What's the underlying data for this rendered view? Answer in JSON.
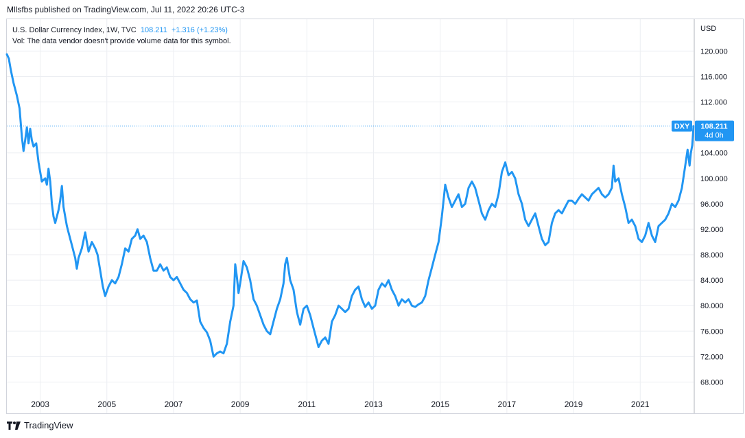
{
  "header": {
    "publish_text": "Mllsfbs published on TradingView.com, Jul 11, 2022 20:26 UTC-3"
  },
  "legend": {
    "symbol_text": "U.S. Dollar Currency Index, 1W, TVC",
    "last_value": "108.211",
    "change": "+1.316 (+1.23%)",
    "volume_note": "Vol: The data vendor doesn't provide volume data for this symbol."
  },
  "price_axis": {
    "currency": "USD",
    "tag_symbol": "DXY",
    "tag_price": "108.211",
    "tag_countdown": "4d 0h"
  },
  "footer": {
    "brand": "TradingView"
  },
  "colors": {
    "line": "#2196f3",
    "grid": "#eceef2",
    "axis_text": "#131722",
    "tag": "#2196f3"
  },
  "chart_data": {
    "type": "line",
    "series": [
      {
        "points": [
          [
            2002.0,
            119.5
          ],
          [
            2002.06,
            118.8
          ],
          [
            2002.12,
            117.0
          ],
          [
            2002.2,
            115.0
          ],
          [
            2002.3,
            113.0
          ],
          [
            2002.38,
            111.0
          ],
          [
            2002.45,
            106.5
          ],
          [
            2002.5,
            104.3
          ],
          [
            2002.55,
            106.0
          ],
          [
            2002.6,
            108.0
          ],
          [
            2002.65,
            105.5
          ],
          [
            2002.7,
            107.8
          ],
          [
            2002.75,
            106.0
          ],
          [
            2002.8,
            105.0
          ],
          [
            2002.88,
            105.5
          ],
          [
            2002.95,
            102.5
          ],
          [
            2003.05,
            99.5
          ],
          [
            2003.15,
            100.0
          ],
          [
            2003.2,
            99.0
          ],
          [
            2003.25,
            101.5
          ],
          [
            2003.3,
            99.5
          ],
          [
            2003.35,
            96.0
          ],
          [
            2003.4,
            94.0
          ],
          [
            2003.45,
            93.0
          ],
          [
            2003.55,
            95.0
          ],
          [
            2003.6,
            96.5
          ],
          [
            2003.65,
            98.8
          ],
          [
            2003.7,
            95.5
          ],
          [
            2003.75,
            94.0
          ],
          [
            2003.8,
            92.5
          ],
          [
            2003.85,
            91.5
          ],
          [
            2003.95,
            89.5
          ],
          [
            2004.05,
            87.5
          ],
          [
            2004.1,
            85.8
          ],
          [
            2004.15,
            87.5
          ],
          [
            2004.25,
            89.0
          ],
          [
            2004.35,
            91.5
          ],
          [
            2004.4,
            90.0
          ],
          [
            2004.45,
            88.5
          ],
          [
            2004.55,
            90.0
          ],
          [
            2004.65,
            89.0
          ],
          [
            2004.72,
            88.0
          ],
          [
            2004.8,
            85.5
          ],
          [
            2004.88,
            83.0
          ],
          [
            2004.95,
            81.5
          ],
          [
            2005.05,
            83.0
          ],
          [
            2005.15,
            84.0
          ],
          [
            2005.25,
            83.5
          ],
          [
            2005.35,
            84.5
          ],
          [
            2005.45,
            86.5
          ],
          [
            2005.55,
            89.0
          ],
          [
            2005.65,
            88.5
          ],
          [
            2005.75,
            90.5
          ],
          [
            2005.85,
            91.0
          ],
          [
            2005.92,
            92.0
          ],
          [
            2006.0,
            90.5
          ],
          [
            2006.1,
            91.0
          ],
          [
            2006.2,
            90.0
          ],
          [
            2006.3,
            87.5
          ],
          [
            2006.4,
            85.5
          ],
          [
            2006.5,
            85.5
          ],
          [
            2006.6,
            86.5
          ],
          [
            2006.7,
            85.5
          ],
          [
            2006.8,
            86.0
          ],
          [
            2006.9,
            84.5
          ],
          [
            2007.0,
            84.0
          ],
          [
            2007.1,
            84.5
          ],
          [
            2007.2,
            83.5
          ],
          [
            2007.3,
            82.5
          ],
          [
            2007.4,
            82.0
          ],
          [
            2007.5,
            81.0
          ],
          [
            2007.6,
            80.5
          ],
          [
            2007.7,
            80.8
          ],
          [
            2007.8,
            77.5
          ],
          [
            2007.9,
            76.5
          ],
          [
            2008.0,
            75.8
          ],
          [
            2008.1,
            74.5
          ],
          [
            2008.2,
            72.0
          ],
          [
            2008.3,
            72.5
          ],
          [
            2008.4,
            72.8
          ],
          [
            2008.5,
            72.5
          ],
          [
            2008.6,
            74.0
          ],
          [
            2008.7,
            77.5
          ],
          [
            2008.8,
            80.0
          ],
          [
            2008.85,
            86.5
          ],
          [
            2008.9,
            84.5
          ],
          [
            2008.95,
            82.0
          ],
          [
            2009.0,
            83.5
          ],
          [
            2009.1,
            87.0
          ],
          [
            2009.2,
            86.0
          ],
          [
            2009.3,
            84.0
          ],
          [
            2009.4,
            81.0
          ],
          [
            2009.5,
            80.0
          ],
          [
            2009.6,
            78.5
          ],
          [
            2009.7,
            77.0
          ],
          [
            2009.8,
            76.0
          ],
          [
            2009.9,
            75.5
          ],
          [
            2010.0,
            77.5
          ],
          [
            2010.1,
            79.5
          ],
          [
            2010.2,
            81.0
          ],
          [
            2010.3,
            83.5
          ],
          [
            2010.35,
            86.5
          ],
          [
            2010.4,
            87.5
          ],
          [
            2010.5,
            84.0
          ],
          [
            2010.6,
            82.5
          ],
          [
            2010.7,
            79.0
          ],
          [
            2010.8,
            77.0
          ],
          [
            2010.9,
            79.5
          ],
          [
            2011.0,
            80.0
          ],
          [
            2011.1,
            78.5
          ],
          [
            2011.2,
            76.5
          ],
          [
            2011.3,
            74.5
          ],
          [
            2011.35,
            73.5
          ],
          [
            2011.45,
            74.5
          ],
          [
            2011.55,
            75.0
          ],
          [
            2011.65,
            74.0
          ],
          [
            2011.75,
            77.5
          ],
          [
            2011.85,
            78.5
          ],
          [
            2011.95,
            80.0
          ],
          [
            2012.05,
            79.5
          ],
          [
            2012.15,
            79.0
          ],
          [
            2012.25,
            79.5
          ],
          [
            2012.35,
            81.5
          ],
          [
            2012.45,
            82.5
          ],
          [
            2012.55,
            83.0
          ],
          [
            2012.65,
            81.0
          ],
          [
            2012.75,
            79.8
          ],
          [
            2012.85,
            80.5
          ],
          [
            2012.95,
            79.5
          ],
          [
            2013.05,
            80.0
          ],
          [
            2013.15,
            82.5
          ],
          [
            2013.25,
            83.5
          ],
          [
            2013.35,
            83.0
          ],
          [
            2013.45,
            84.0
          ],
          [
            2013.55,
            82.5
          ],
          [
            2013.65,
            81.5
          ],
          [
            2013.75,
            80.0
          ],
          [
            2013.85,
            81.0
          ],
          [
            2013.95,
            80.5
          ],
          [
            2014.05,
            81.0
          ],
          [
            2014.15,
            80.0
          ],
          [
            2014.25,
            79.8
          ],
          [
            2014.35,
            80.2
          ],
          [
            2014.45,
            80.5
          ],
          [
            2014.55,
            81.5
          ],
          [
            2014.65,
            84.0
          ],
          [
            2014.75,
            86.0
          ],
          [
            2014.85,
            88.0
          ],
          [
            2014.95,
            90.0
          ],
          [
            2015.05,
            94.0
          ],
          [
            2015.15,
            99.0
          ],
          [
            2015.25,
            97.0
          ],
          [
            2015.35,
            95.5
          ],
          [
            2015.45,
            96.5
          ],
          [
            2015.55,
            97.5
          ],
          [
            2015.65,
            95.5
          ],
          [
            2015.75,
            96.0
          ],
          [
            2015.85,
            98.5
          ],
          [
            2015.95,
            99.5
          ],
          [
            2016.05,
            98.5
          ],
          [
            2016.15,
            96.5
          ],
          [
            2016.25,
            94.5
          ],
          [
            2016.35,
            93.5
          ],
          [
            2016.45,
            95.0
          ],
          [
            2016.55,
            96.0
          ],
          [
            2016.65,
            95.5
          ],
          [
            2016.75,
            97.5
          ],
          [
            2016.85,
            101.0
          ],
          [
            2016.95,
            102.5
          ],
          [
            2017.05,
            100.5
          ],
          [
            2017.15,
            101.0
          ],
          [
            2017.25,
            100.0
          ],
          [
            2017.35,
            97.5
          ],
          [
            2017.45,
            96.0
          ],
          [
            2017.55,
            93.5
          ],
          [
            2017.65,
            92.5
          ],
          [
            2017.75,
            93.5
          ],
          [
            2017.85,
            94.5
          ],
          [
            2017.95,
            92.5
          ],
          [
            2018.05,
            90.5
          ],
          [
            2018.15,
            89.5
          ],
          [
            2018.25,
            90.0
          ],
          [
            2018.35,
            93.0
          ],
          [
            2018.45,
            94.5
          ],
          [
            2018.55,
            95.0
          ],
          [
            2018.65,
            94.5
          ],
          [
            2018.75,
            95.5
          ],
          [
            2018.85,
            96.5
          ],
          [
            2018.95,
            96.5
          ],
          [
            2019.05,
            96.0
          ],
          [
            2019.15,
            96.8
          ],
          [
            2019.25,
            97.5
          ],
          [
            2019.35,
            97.0
          ],
          [
            2019.45,
            96.5
          ],
          [
            2019.55,
            97.5
          ],
          [
            2019.65,
            98.0
          ],
          [
            2019.75,
            98.5
          ],
          [
            2019.85,
            97.5
          ],
          [
            2019.95,
            97.0
          ],
          [
            2020.05,
            97.5
          ],
          [
            2020.15,
            98.5
          ],
          [
            2020.2,
            102.0
          ],
          [
            2020.25,
            99.5
          ],
          [
            2020.35,
            100.0
          ],
          [
            2020.45,
            97.5
          ],
          [
            2020.55,
            95.5
          ],
          [
            2020.65,
            93.0
          ],
          [
            2020.75,
            93.5
          ],
          [
            2020.85,
            92.5
          ],
          [
            2020.95,
            90.5
          ],
          [
            2021.05,
            90.0
          ],
          [
            2021.15,
            91.0
          ],
          [
            2021.25,
            93.0
          ],
          [
            2021.35,
            91.0
          ],
          [
            2021.45,
            90.0
          ],
          [
            2021.55,
            92.5
          ],
          [
            2021.65,
            93.0
          ],
          [
            2021.75,
            93.5
          ],
          [
            2021.85,
            94.5
          ],
          [
            2021.95,
            96.0
          ],
          [
            2022.05,
            95.5
          ],
          [
            2022.15,
            96.5
          ],
          [
            2022.25,
            98.5
          ],
          [
            2022.35,
            102.0
          ],
          [
            2022.42,
            104.5
          ],
          [
            2022.48,
            102.0
          ],
          [
            2022.52,
            104.0
          ],
          [
            2022.56,
            105.2
          ],
          [
            2022.6,
            108.2
          ]
        ]
      }
    ],
    "x_range": [
      2002.0,
      2022.6
    ],
    "y_range": [
      66.0,
      125.0
    ],
    "x_ticks": [
      "2003",
      "2005",
      "2007",
      "2009",
      "2011",
      "2013",
      "2015",
      "2017",
      "2019",
      "2021"
    ],
    "y_ticks": [
      "68.000",
      "72.000",
      "76.000",
      "80.000",
      "84.000",
      "88.000",
      "92.000",
      "96.000",
      "100.000",
      "104.000",
      "112.000",
      "116.000",
      "120.000"
    ],
    "last_price": 108.211,
    "grid": true
  }
}
